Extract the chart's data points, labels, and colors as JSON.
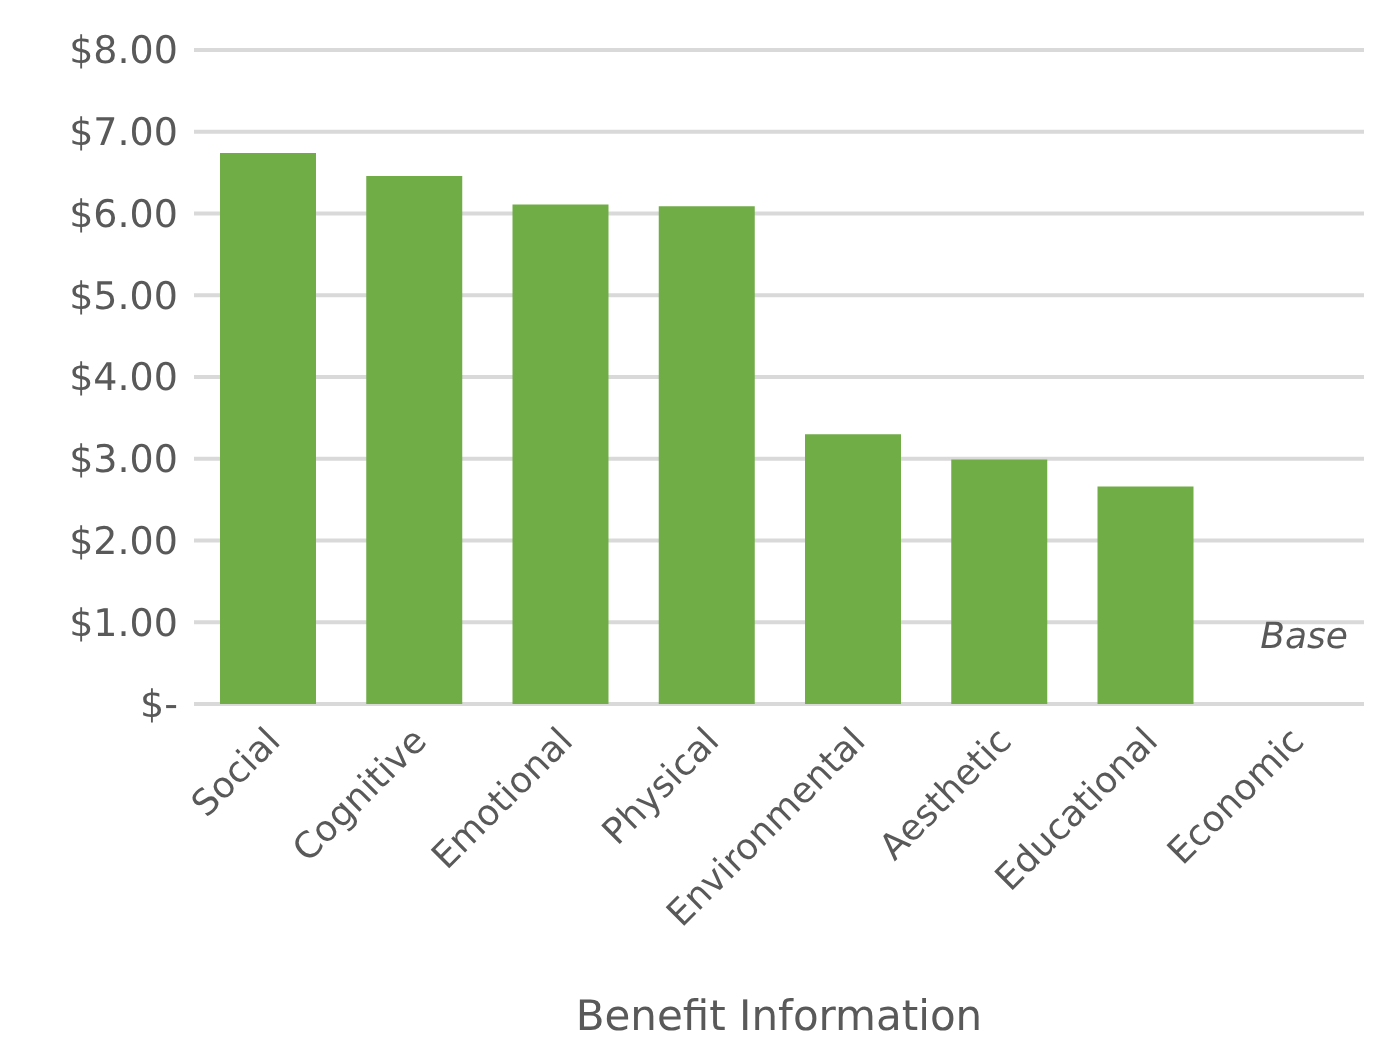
{
  "chart_data": {
    "type": "bar",
    "xlabel": "Benefit Information",
    "categories": [
      "Social",
      "Cognitive",
      "Emotional",
      "Physical",
      "Environmental",
      "Aesthetic",
      "Educational",
      "Economic"
    ],
    "values": [
      6.74,
      6.46,
      6.11,
      6.09,
      3.3,
      2.99,
      2.66,
      0
    ],
    "color": "#70ad47",
    "ylim": [
      0,
      8
    ],
    "yticks": [
      {
        "value": 0,
        "label": "$-"
      },
      {
        "value": 1,
        "label": "$1.00"
      },
      {
        "value": 2,
        "label": "$2.00"
      },
      {
        "value": 3,
        "label": "$3.00"
      },
      {
        "value": 4,
        "label": "$4.00"
      },
      {
        "value": 5,
        "label": "$5.00"
      },
      {
        "value": 6,
        "label": "$6.00"
      },
      {
        "value": 7,
        "label": "$7.00"
      },
      {
        "value": 8,
        "label": "$8.00"
      }
    ],
    "grid": "y",
    "annotations": [
      "Base"
    ]
  }
}
